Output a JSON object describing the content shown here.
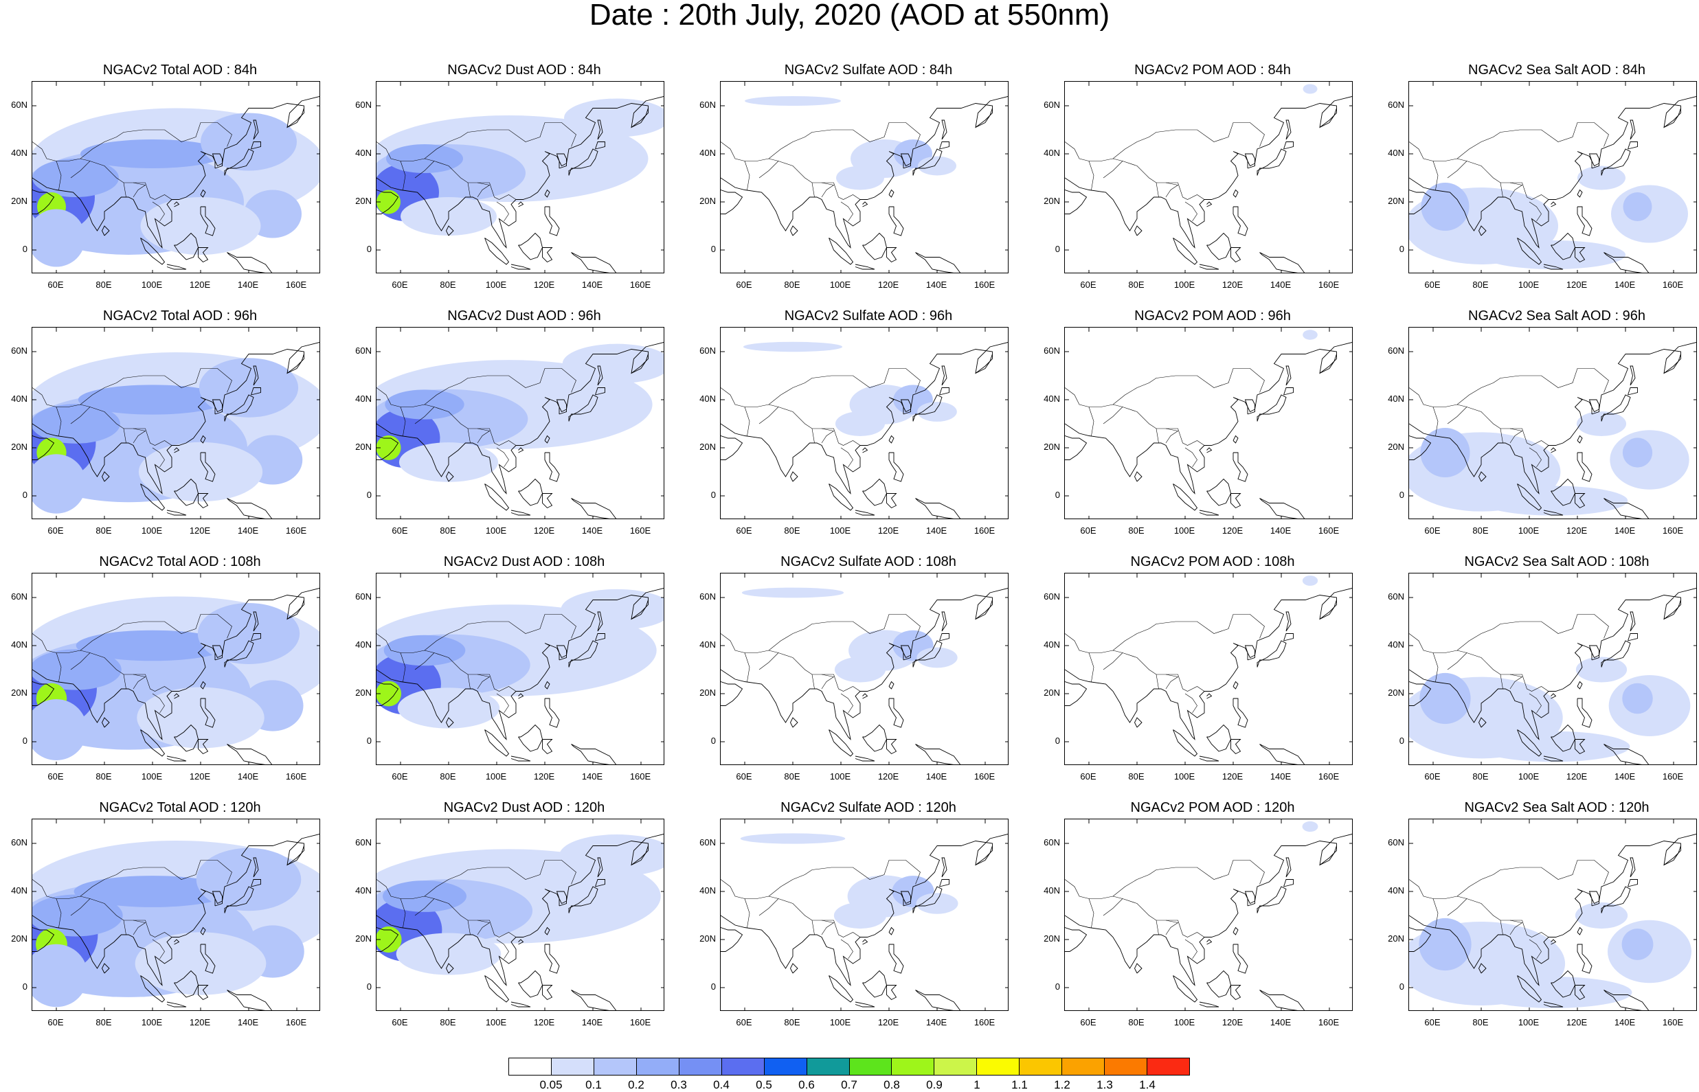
{
  "title": "Date : 20th July, 2020 (AOD at 550nm)",
  "lat_labels": [
    "60N",
    "40N",
    "20N",
    "0"
  ],
  "lon_labels": [
    "60E",
    "80E",
    "100E",
    "120E",
    "140E",
    "160E"
  ],
  "lat_values": [
    60,
    40,
    20,
    0
  ],
  "lon_values": [
    60,
    80,
    100,
    120,
    140,
    160
  ],
  "map_extent": {
    "lon_min": 50,
    "lon_max": 170,
    "lat_min": -10,
    "lat_max": 70
  },
  "panels": [
    {
      "title": "NGACv2 Total AOD : 84h",
      "species": "total",
      "hour": 84
    },
    {
      "title": "NGACv2 Dust AOD : 84h",
      "species": "dust",
      "hour": 84
    },
    {
      "title": "NGACv2 Sulfate AOD : 84h",
      "species": "sulfate",
      "hour": 84
    },
    {
      "title": "NGACv2 POM AOD : 84h",
      "species": "pom",
      "hour": 84
    },
    {
      "title": "NGACv2 Sea Salt AOD : 84h",
      "species": "seasalt",
      "hour": 84
    },
    {
      "title": "NGACv2 Total AOD : 96h",
      "species": "total",
      "hour": 96
    },
    {
      "title": "NGACv2 Dust AOD : 96h",
      "species": "dust",
      "hour": 96
    },
    {
      "title": "NGACv2 Sulfate AOD : 96h",
      "species": "sulfate",
      "hour": 96
    },
    {
      "title": "NGACv2 POM AOD : 96h",
      "species": "pom",
      "hour": 96
    },
    {
      "title": "NGACv2 Sea Salt AOD : 96h",
      "species": "seasalt",
      "hour": 96
    },
    {
      "title": "NGACv2 Total AOD : 108h",
      "species": "total",
      "hour": 108
    },
    {
      "title": "NGACv2 Dust AOD : 108h",
      "species": "dust",
      "hour": 108
    },
    {
      "title": "NGACv2 Sulfate AOD : 108h",
      "species": "sulfate",
      "hour": 108
    },
    {
      "title": "NGACv2 POM AOD : 108h",
      "species": "pom",
      "hour": 108
    },
    {
      "title": "NGACv2 Sea Salt AOD : 108h",
      "species": "seasalt",
      "hour": 108
    },
    {
      "title": "NGACv2 Total AOD : 120h",
      "species": "total",
      "hour": 120
    },
    {
      "title": "NGACv2 Dust AOD : 120h",
      "species": "dust",
      "hour": 120
    },
    {
      "title": "NGACv2 Sulfate AOD : 120h",
      "species": "sulfate",
      "hour": 120
    },
    {
      "title": "NGACv2 POM AOD : 120h",
      "species": "pom",
      "hour": 120
    },
    {
      "title": "NGACv2 Sea Salt  AOD : 120h",
      "species": "seasalt",
      "hour": 120
    }
  ],
  "colorbar": {
    "colors": [
      "#ffffff",
      "#d5dffb",
      "#b4c6fa",
      "#93adf8",
      "#7590f4",
      "#5b6ef0",
      "#1060f2",
      "#119a9a",
      "#5de41c",
      "#9ef51a",
      "#ccf549",
      "#fbfb00",
      "#fbc600",
      "#fba200",
      "#fb7a00",
      "#fb2a12"
    ],
    "labels": [
      "0.05",
      "0.1",
      "0.2",
      "0.3",
      "0.4",
      "0.5",
      "0.6",
      "0.7",
      "0.8",
      "0.9",
      "1",
      "1.1",
      "1.2",
      "1.3",
      "1.4"
    ]
  },
  "species_colors": {
    "light": "#d5dffb",
    "mid": "#b4c6fa",
    "strong": "#93adf8",
    "deep": "#7590f4",
    "blue": "#5b6ef0",
    "green": "#9ef51a",
    "coast": "#000000"
  }
}
